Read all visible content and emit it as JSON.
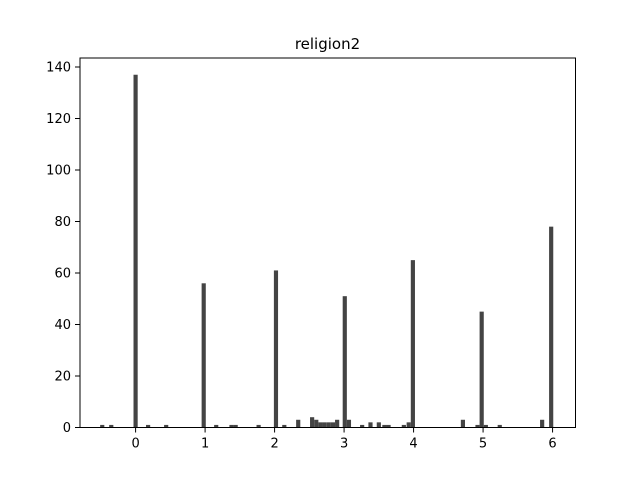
{
  "chart_data": {
    "type": "bar",
    "title": "religion2",
    "xlabel": "",
    "ylabel": "",
    "xlim": [
      -0.8,
      6.33
    ],
    "ylim": [
      0,
      143.5
    ],
    "xticks": [
      "0",
      "1",
      "2",
      "3",
      "4",
      "5",
      "6"
    ],
    "yticks": [
      "0",
      "20",
      "40",
      "60",
      "80",
      "100",
      "120",
      "140"
    ],
    "grid": false,
    "bar_color": "#444444",
    "bar_width": 0.06,
    "bars": [
      {
        "x": -0.48,
        "value": 1
      },
      {
        "x": -0.35,
        "value": 1
      },
      {
        "x": 0.0,
        "value": 137
      },
      {
        "x": 0.18,
        "value": 1
      },
      {
        "x": 0.44,
        "value": 1
      },
      {
        "x": 0.98,
        "value": 56
      },
      {
        "x": 1.16,
        "value": 1
      },
      {
        "x": 1.38,
        "value": 1
      },
      {
        "x": 1.44,
        "value": 1
      },
      {
        "x": 1.77,
        "value": 1
      },
      {
        "x": 2.02,
        "value": 61
      },
      {
        "x": 2.14,
        "value": 1
      },
      {
        "x": 2.34,
        "value": 3
      },
      {
        "x": 2.54,
        "value": 4
      },
      {
        "x": 2.6,
        "value": 3
      },
      {
        "x": 2.66,
        "value": 2
      },
      {
        "x": 2.72,
        "value": 2
      },
      {
        "x": 2.78,
        "value": 2
      },
      {
        "x": 2.84,
        "value": 2
      },
      {
        "x": 2.9,
        "value": 3
      },
      {
        "x": 3.01,
        "value": 51
      },
      {
        "x": 3.07,
        "value": 3
      },
      {
        "x": 3.26,
        "value": 1
      },
      {
        "x": 3.38,
        "value": 2
      },
      {
        "x": 3.5,
        "value": 2
      },
      {
        "x": 3.58,
        "value": 1
      },
      {
        "x": 3.64,
        "value": 1
      },
      {
        "x": 3.86,
        "value": 1
      },
      {
        "x": 3.93,
        "value": 2
      },
      {
        "x": 3.99,
        "value": 65
      },
      {
        "x": 4.71,
        "value": 3
      },
      {
        "x": 4.92,
        "value": 1
      },
      {
        "x": 4.98,
        "value": 45
      },
      {
        "x": 5.04,
        "value": 1
      },
      {
        "x": 5.24,
        "value": 1
      },
      {
        "x": 5.85,
        "value": 3
      },
      {
        "x": 5.98,
        "value": 78
      }
    ]
  }
}
